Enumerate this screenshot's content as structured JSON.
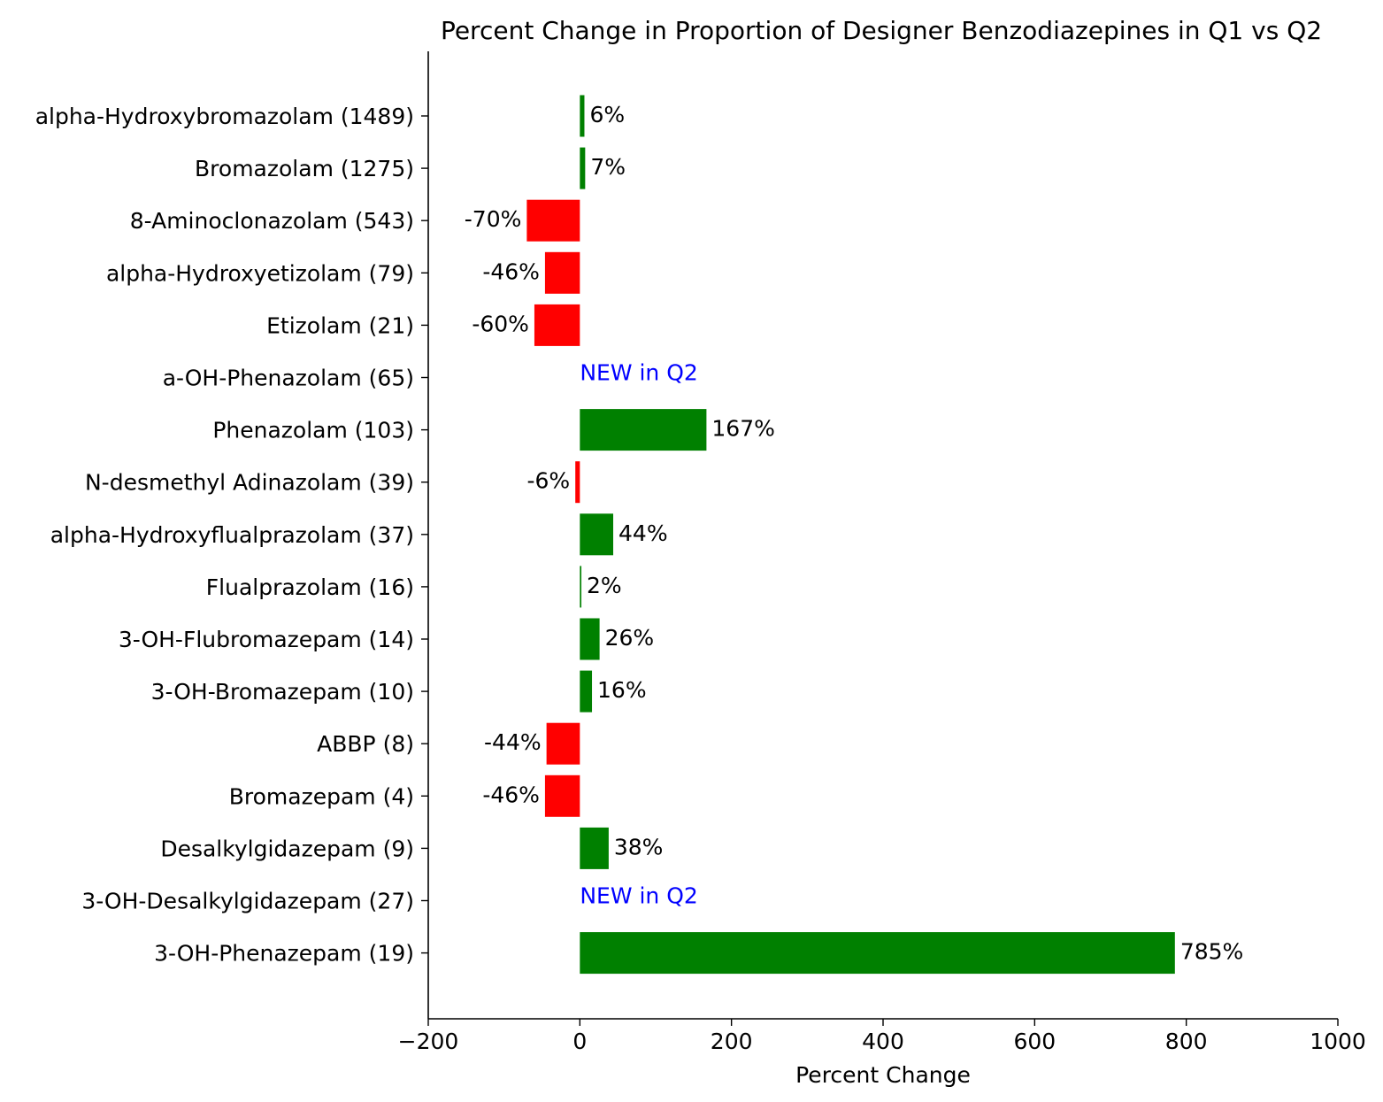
{
  "chart_data": {
    "type": "bar",
    "orientation": "horizontal",
    "title": "Percent Change in Proportion of Designer Benzodiazepines in Q1 vs Q2",
    "xlabel": "Percent Change",
    "ylabel": "",
    "xlim": [
      -200,
      1000
    ],
    "xticks": [
      -200,
      0,
      200,
      400,
      600,
      800,
      1000
    ],
    "xtick_labels": [
      "−200",
      "0",
      "200",
      "400",
      "600",
      "800",
      "1000"
    ],
    "grid": false,
    "colors": {
      "positive": "#008000",
      "negative": "#ff0000",
      "new": "#0000ff"
    },
    "categories": [
      "alpha-Hydroxybromazolam (1489)",
      "Bromazolam (1275)",
      "8-Aminoclonazolam (543)",
      "alpha-Hydroxyetizolam (79)",
      "Etizolam (21)",
      "a-OH-Phenazolam (65)",
      "Phenazolam (103)",
      "N-desmethyl Adinazolam (39)",
      "alpha-Hydroxyflualprazolam (37)",
      "Flualprazolam (16)",
      "3-OH-Flubromazepam (14)",
      "3-OH-Bromazepam (10)",
      "ABBP (8)",
      "Bromazepam (4)",
      "Desalkylgidazepam (9)",
      "3-OH-Desalkylgidazepam (27)",
      "3-OH-Phenazepam (19)"
    ],
    "values": [
      6,
      7,
      -70,
      -46,
      -60,
      null,
      167,
      -6,
      44,
      2,
      26,
      16,
      -44,
      -46,
      38,
      null,
      785
    ],
    "labels": [
      "6%",
      "7%",
      "-70%",
      "-46%",
      "-60%",
      "NEW in Q2",
      "167%",
      "-6%",
      "44%",
      "2%",
      "26%",
      "16%",
      "-44%",
      "-46%",
      "38%",
      "NEW in Q2",
      "785%"
    ]
  }
}
